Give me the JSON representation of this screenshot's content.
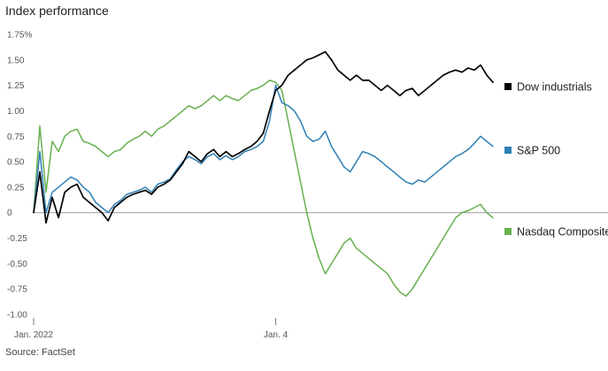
{
  "chart_data": {
    "type": "line",
    "title": "Index performance",
    "source": "Source: FactSet",
    "y_unit_suffix": "%",
    "ylim": [
      -1.05,
      1.82
    ],
    "yticks": [
      1.75,
      1.5,
      1.25,
      1.0,
      0.75,
      0.5,
      0.25,
      0,
      -0.25,
      -0.5,
      -0.75,
      -1.0
    ],
    "ytick_labels": [
      "1.75%",
      "1.50",
      "1.25",
      "1.00",
      "0.75",
      "0.50",
      "0.25",
      "0",
      "-0.25",
      "-0.50",
      "-0.75",
      "-1.00"
    ],
    "xlim": [
      0,
      74
    ],
    "xticks": [
      {
        "x": 0,
        "label": "Jan. 2022"
      },
      {
        "x": 39,
        "label": "Jan. 4"
      }
    ],
    "zero_line": true,
    "grid": false,
    "legend_position": "right",
    "series": [
      {
        "name": "Dow industrials",
        "color": "#000000",
        "x": [
          0,
          1,
          2,
          3,
          4,
          5,
          6,
          7,
          8,
          9,
          10,
          11,
          12,
          13,
          14,
          15,
          16,
          17,
          18,
          19,
          20,
          21,
          22,
          23,
          24,
          25,
          26,
          27,
          28,
          29,
          30,
          31,
          32,
          33,
          34,
          35,
          36,
          37,
          38,
          39,
          40,
          41,
          42,
          43,
          44,
          45,
          46,
          47,
          48,
          49,
          50,
          51,
          52,
          53,
          54,
          55,
          56,
          57,
          58,
          59,
          60,
          61,
          62,
          63,
          64,
          65,
          66,
          67,
          68,
          69,
          70,
          71,
          72,
          73,
          74
        ],
        "values": [
          0.0,
          0.4,
          -0.1,
          0.15,
          -0.05,
          0.2,
          0.25,
          0.28,
          0.15,
          0.1,
          0.05,
          0.0,
          -0.08,
          0.05,
          0.1,
          0.15,
          0.18,
          0.2,
          0.22,
          0.18,
          0.25,
          0.28,
          0.32,
          0.4,
          0.48,
          0.6,
          0.55,
          0.5,
          0.58,
          0.62,
          0.55,
          0.6,
          0.55,
          0.58,
          0.62,
          0.65,
          0.7,
          0.78,
          1.0,
          1.2,
          1.25,
          1.35,
          1.4,
          1.45,
          1.5,
          1.52,
          1.55,
          1.58,
          1.5,
          1.4,
          1.35,
          1.3,
          1.35,
          1.3,
          1.3,
          1.25,
          1.2,
          1.25,
          1.2,
          1.15,
          1.2,
          1.22,
          1.15,
          1.2,
          1.25,
          1.3,
          1.35,
          1.38,
          1.4,
          1.38,
          1.42,
          1.4,
          1.45,
          1.35,
          1.28
        ]
      },
      {
        "name": "S&P 500",
        "color": "#2e7fb5",
        "x": [
          0,
          1,
          2,
          3,
          4,
          5,
          6,
          7,
          8,
          9,
          10,
          11,
          12,
          13,
          14,
          15,
          16,
          17,
          18,
          19,
          20,
          21,
          22,
          23,
          24,
          25,
          26,
          27,
          28,
          29,
          30,
          31,
          32,
          33,
          34,
          35,
          36,
          37,
          38,
          39,
          40,
          41,
          42,
          43,
          44,
          45,
          46,
          47,
          48,
          49,
          50,
          51,
          52,
          53,
          54,
          55,
          56,
          57,
          58,
          59,
          60,
          61,
          62,
          63,
          64,
          65,
          66,
          67,
          68,
          69,
          70,
          71,
          72,
          73,
          74
        ],
        "values": [
          0.0,
          0.6,
          0.0,
          0.2,
          0.25,
          0.3,
          0.35,
          0.32,
          0.25,
          0.2,
          0.1,
          0.05,
          0.0,
          0.08,
          0.12,
          0.18,
          0.2,
          0.22,
          0.25,
          0.2,
          0.28,
          0.3,
          0.33,
          0.42,
          0.5,
          0.55,
          0.52,
          0.48,
          0.55,
          0.58,
          0.52,
          0.56,
          0.52,
          0.55,
          0.6,
          0.62,
          0.65,
          0.7,
          0.9,
          1.25,
          1.08,
          1.05,
          1.0,
          0.9,
          0.75,
          0.7,
          0.72,
          0.8,
          0.65,
          0.55,
          0.45,
          0.4,
          0.5,
          0.6,
          0.58,
          0.55,
          0.5,
          0.45,
          0.4,
          0.35,
          0.3,
          0.28,
          0.32,
          0.3,
          0.35,
          0.4,
          0.45,
          0.5,
          0.55,
          0.58,
          0.62,
          0.68,
          0.75,
          0.7,
          0.65
        ]
      },
      {
        "name": "Nasdaq Composite",
        "color": "#66b04e",
        "x": [
          0,
          1,
          2,
          3,
          4,
          5,
          6,
          7,
          8,
          9,
          10,
          11,
          12,
          13,
          14,
          15,
          16,
          17,
          18,
          19,
          20,
          21,
          22,
          23,
          24,
          25,
          26,
          27,
          28,
          29,
          30,
          31,
          32,
          33,
          34,
          35,
          36,
          37,
          38,
          39,
          40,
          41,
          42,
          43,
          44,
          45,
          46,
          47,
          48,
          49,
          50,
          51,
          52,
          53,
          54,
          55,
          56,
          57,
          58,
          59,
          60,
          61,
          62,
          63,
          64,
          65,
          66,
          67,
          68,
          69,
          70,
          71,
          72,
          73,
          74
        ],
        "values": [
          0.0,
          0.85,
          0.2,
          0.7,
          0.6,
          0.75,
          0.8,
          0.82,
          0.7,
          0.68,
          0.65,
          0.6,
          0.55,
          0.6,
          0.62,
          0.68,
          0.72,
          0.75,
          0.8,
          0.75,
          0.82,
          0.85,
          0.9,
          0.95,
          1.0,
          1.05,
          1.02,
          1.05,
          1.1,
          1.15,
          1.1,
          1.15,
          1.12,
          1.1,
          1.15,
          1.2,
          1.22,
          1.25,
          1.3,
          1.28,
          1.2,
          0.9,
          0.6,
          0.3,
          0.0,
          -0.25,
          -0.45,
          -0.6,
          -0.5,
          -0.4,
          -0.3,
          -0.25,
          -0.35,
          -0.4,
          -0.45,
          -0.5,
          -0.55,
          -0.6,
          -0.7,
          -0.78,
          -0.82,
          -0.75,
          -0.65,
          -0.55,
          -0.45,
          -0.35,
          -0.25,
          -0.15,
          -0.05,
          0.0,
          0.02,
          0.05,
          0.08,
          0.0,
          -0.05
        ]
      }
    ]
  }
}
